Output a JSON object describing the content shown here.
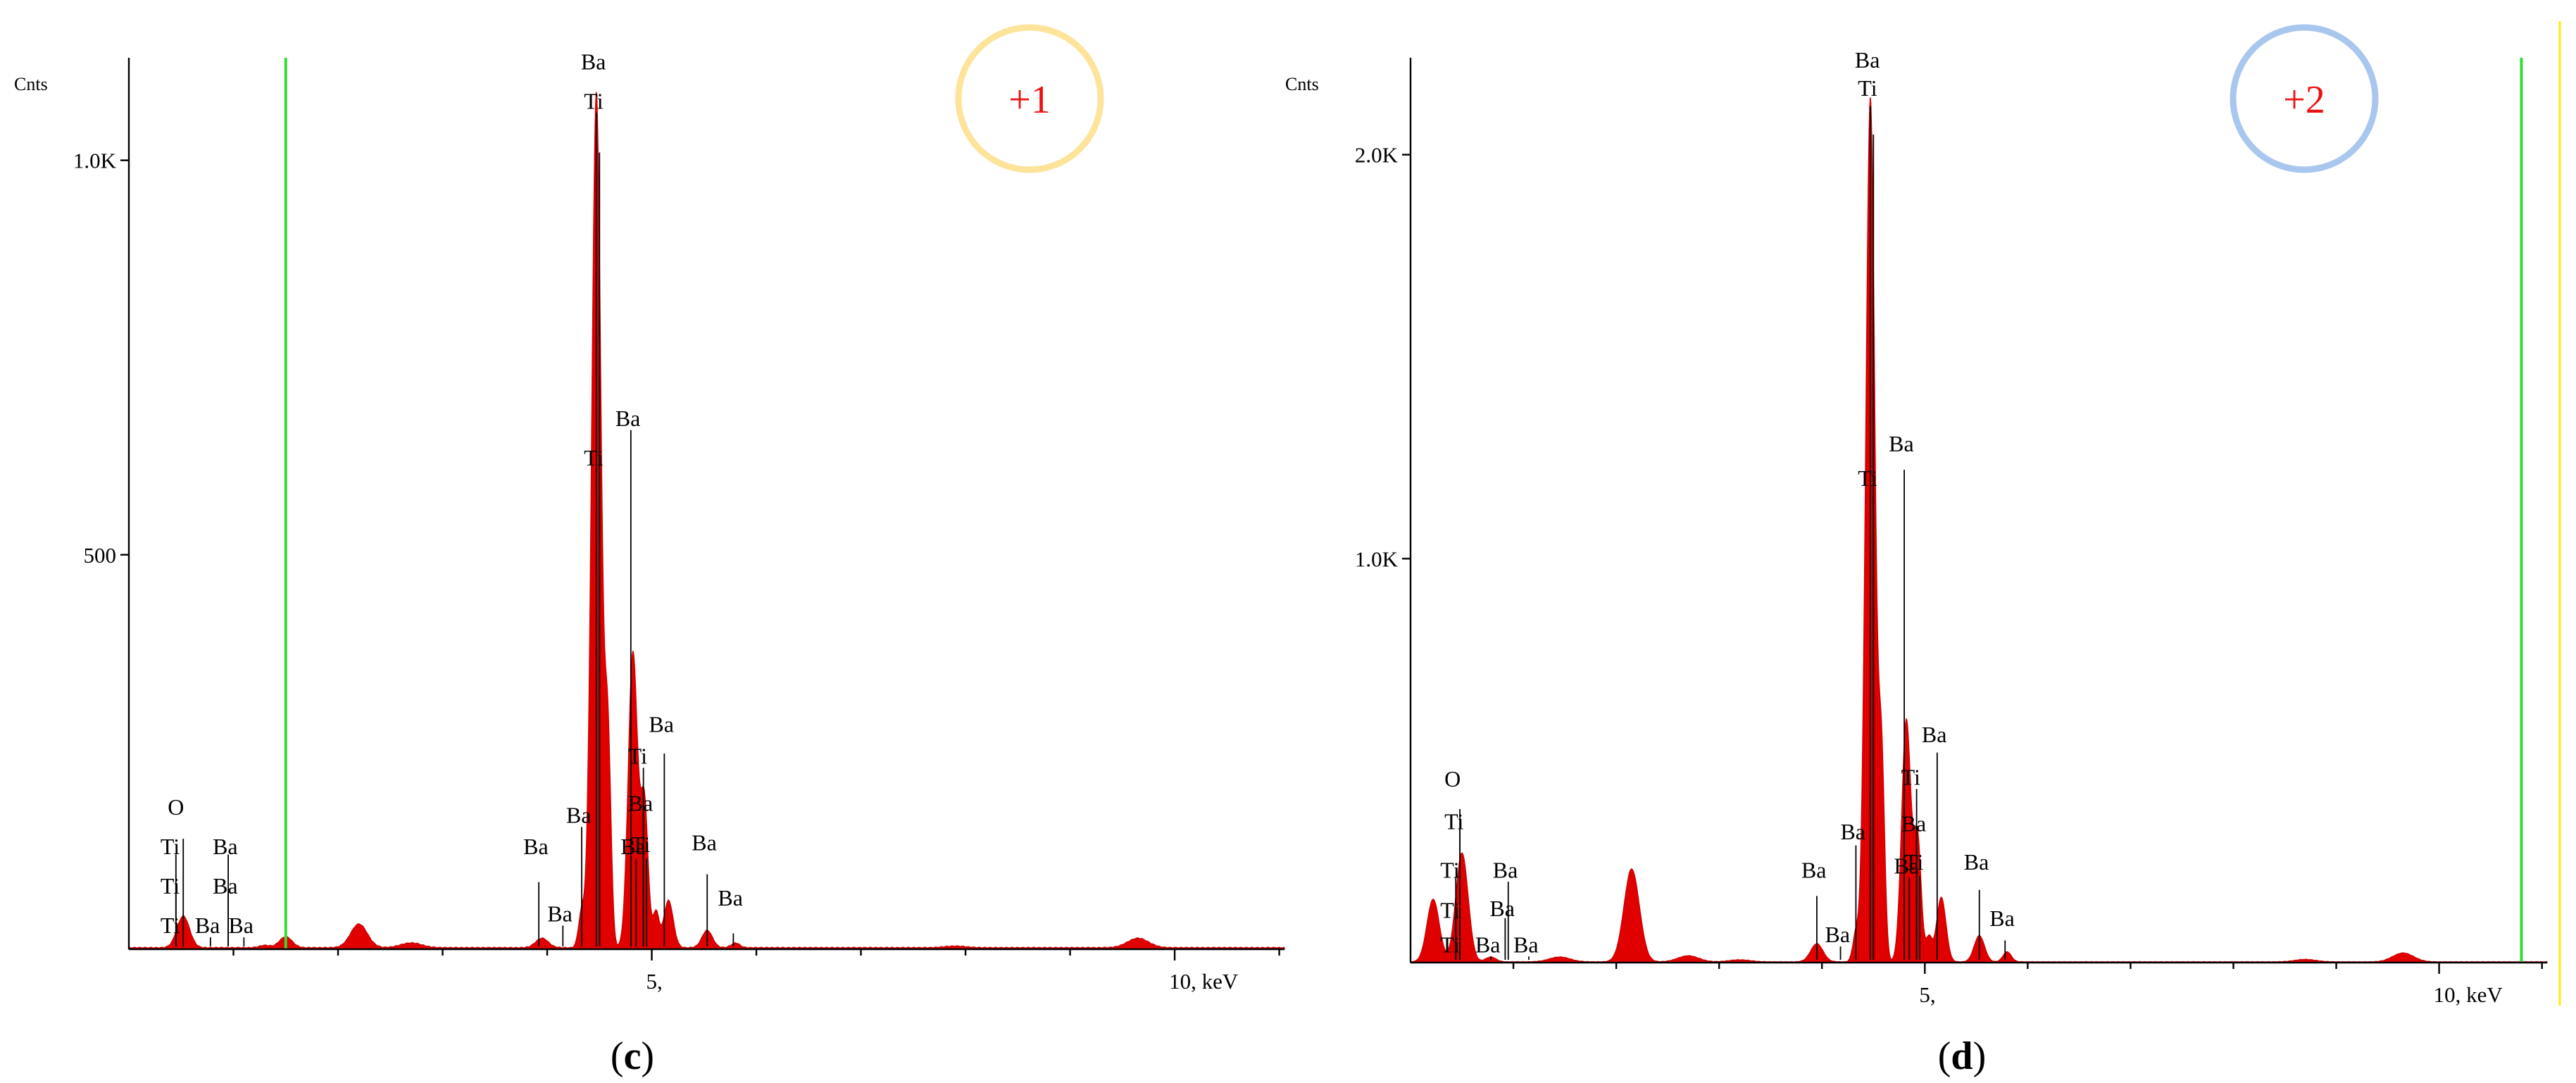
{
  "chart_data": [
    {
      "type": "area",
      "title": "",
      "xlabel": "keV",
      "ylabel": "Cnts",
      "y_unit_label": "Cnts",
      "xlim": [
        0,
        11.05
      ],
      "ylim": [
        0,
        1130
      ],
      "y_ticks": [
        {
          "value": 500,
          "label": "500"
        },
        {
          "value": 1000,
          "label": "1.0K"
        }
      ],
      "x_ticks": [
        {
          "value": 5,
          "label": "5,"
        },
        {
          "value": 10,
          "label": "10, keV"
        }
      ],
      "x_minor_ticks": [
        1,
        2,
        3,
        4,
        6,
        7,
        8,
        9,
        11
      ],
      "marker_line": {
        "x": 1.5,
        "color": "#33dd33"
      },
      "badge": {
        "text": "+1",
        "ring_color": "#fde49a",
        "text_color": "#ee1111"
      },
      "caption": {
        "open": "(",
        "letter": "c",
        "close": ")"
      },
      "grid": false,
      "legend": "none",
      "peaks": [
        {
          "x": 0.52,
          "y": 40,
          "w": 0.06
        },
        {
          "x": 1.3,
          "y": 3,
          "w": 0.05
        },
        {
          "x": 1.5,
          "y": 14,
          "w": 0.06
        },
        {
          "x": 2.2,
          "y": 30,
          "w": 0.08
        },
        {
          "x": 2.7,
          "y": 6,
          "w": 0.1
        },
        {
          "x": 3.95,
          "y": 12,
          "w": 0.06
        },
        {
          "x": 4.33,
          "y": 45,
          "w": 0.03
        },
        {
          "x": 4.47,
          "y": 1085,
          "w": 0.045
        },
        {
          "x": 4.58,
          "y": 260,
          "w": 0.03
        },
        {
          "x": 4.82,
          "y": 375,
          "w": 0.045
        },
        {
          "x": 4.93,
          "y": 180,
          "w": 0.035
        },
        {
          "x": 5.04,
          "y": 45,
          "w": 0.03
        },
        {
          "x": 5.16,
          "y": 60,
          "w": 0.045
        },
        {
          "x": 5.53,
          "y": 22,
          "w": 0.05
        },
        {
          "x": 5.8,
          "y": 6,
          "w": 0.04
        },
        {
          "x": 7.9,
          "y": 2,
          "w": 0.1
        },
        {
          "x": 9.65,
          "y": 12,
          "w": 0.1
        }
      ],
      "labels": [
        {
          "text": "Ba",
          "x": 4.47,
          "line_top": 1060,
          "text_y": 1110
        },
        {
          "text": "Ti",
          "x": 4.5,
          "line_top": 1010,
          "text_y": 1060
        },
        {
          "text": "Ba",
          "x": 4.8,
          "line_top": 658,
          "text_y": 658
        },
        {
          "text": "Ti",
          "x": 4.5,
          "line_top": 608,
          "text_y": 608
        },
        {
          "text": "Ba",
          "x": 5.12,
          "line_top": 248,
          "text_y": 270
        },
        {
          "text": "Ti",
          "x": 4.92,
          "line_top": 230,
          "text_y": 230
        },
        {
          "text": "Ba",
          "x": 4.33,
          "line_top": 155,
          "text_y": 155
        },
        {
          "text": "Ba",
          "x": 4.92,
          "line_top": 170,
          "text_y": 170
        },
        {
          "text": "Ba",
          "x": 4.85,
          "line_top": 115,
          "text_y": 115
        },
        {
          "text": "Ti",
          "x": 4.95,
          "line_top": 115,
          "text_y": 118
        },
        {
          "text": "Ba",
          "x": 3.92,
          "line_top": 85,
          "text_y": 115
        },
        {
          "text": "Ba",
          "x": 4.15,
          "line_top": 30,
          "text_y": 30
        },
        {
          "text": "Ba",
          "x": 5.53,
          "line_top": 95,
          "text_y": 120
        },
        {
          "text": "Ba",
          "x": 5.78,
          "line_top": 20,
          "text_y": 50
        },
        {
          "text": "O",
          "x": 0.52,
          "line_top": 140,
          "text_y": 165
        },
        {
          "text": "Ti",
          "x": 0.45,
          "line_top": 120,
          "text_y": 115
        },
        {
          "text": "Ti",
          "x": 0.45,
          "line_top": 70,
          "text_y": 65
        },
        {
          "text": "Ti",
          "x": 0.45,
          "line_top": 15,
          "text_y": 15
        },
        {
          "text": "Ba",
          "x": 0.95,
          "line_top": 120,
          "text_y": 115
        },
        {
          "text": "Ba",
          "x": 0.95,
          "line_top": 70,
          "text_y": 65
        },
        {
          "text": "Ba",
          "x": 0.78,
          "line_top": 15,
          "text_y": 15
        },
        {
          "text": "Ba",
          "x": 1.1,
          "line_top": 15,
          "text_y": 15
        }
      ]
    },
    {
      "type": "area",
      "title": "",
      "xlabel": "keV",
      "ylabel": "Cnts",
      "y_unit_label": "Cnts",
      "xlim": [
        0,
        11.05
      ],
      "ylim": [
        0,
        2240
      ],
      "y_ticks": [
        {
          "value": 1000,
          "label": "1.0K"
        },
        {
          "value": 2000,
          "label": "2.0K"
        }
      ],
      "x_ticks": [
        {
          "value": 5,
          "label": "5,"
        },
        {
          "value": 10,
          "label": "10, keV"
        }
      ],
      "x_minor_ticks": [
        1,
        2,
        3,
        4,
        6,
        7,
        8,
        9,
        11
      ],
      "marker_line": {
        "x": 10.8,
        "color": "#33dd33"
      },
      "edge_line": {
        "color": "#ffee00"
      },
      "badge": {
        "text": "+2",
        "ring_color": "#a9c7ee",
        "text_color": "#ee1111"
      },
      "caption": {
        "open": "(",
        "letter": "d",
        "close": ")"
      },
      "grid": false,
      "legend": "none",
      "peaks": [
        {
          "x": 0.22,
          "y": 155,
          "w": 0.06
        },
        {
          "x": 0.5,
          "y": 270,
          "w": 0.06
        },
        {
          "x": 0.78,
          "y": 12,
          "w": 0.05
        },
        {
          "x": 1.45,
          "y": 12,
          "w": 0.1
        },
        {
          "x": 2.15,
          "y": 230,
          "w": 0.075
        },
        {
          "x": 2.7,
          "y": 15,
          "w": 0.1
        },
        {
          "x": 3.2,
          "y": 5,
          "w": 0.1
        },
        {
          "x": 3.95,
          "y": 45,
          "w": 0.06
        },
        {
          "x": 4.33,
          "y": 70,
          "w": 0.03
        },
        {
          "x": 4.47,
          "y": 2140,
          "w": 0.045
        },
        {
          "x": 4.58,
          "y": 480,
          "w": 0.03
        },
        {
          "x": 4.82,
          "y": 600,
          "w": 0.045
        },
        {
          "x": 4.93,
          "y": 300,
          "w": 0.035
        },
        {
          "x": 5.04,
          "y": 60,
          "w": 0.03
        },
        {
          "x": 5.16,
          "y": 160,
          "w": 0.045
        },
        {
          "x": 5.53,
          "y": 65,
          "w": 0.05
        },
        {
          "x": 5.8,
          "y": 25,
          "w": 0.04
        },
        {
          "x": 8.7,
          "y": 6,
          "w": 0.1
        },
        {
          "x": 9.65,
          "y": 22,
          "w": 0.1
        }
      ],
      "labels": [
        {
          "text": "Ba",
          "x": 4.47,
          "line_top": 2120,
          "text_y": 2205
        },
        {
          "text": "Ti",
          "x": 4.5,
          "line_top": 2050,
          "text_y": 2135
        },
        {
          "text": "Ba",
          "x": 4.8,
          "line_top": 1220,
          "text_y": 1255
        },
        {
          "text": "Ti",
          "x": 4.5,
          "line_top": 1160,
          "text_y": 1170
        },
        {
          "text": "Ba",
          "x": 5.12,
          "line_top": 520,
          "text_y": 535
        },
        {
          "text": "Ti",
          "x": 4.92,
          "line_top": 430,
          "text_y": 430
        },
        {
          "text": "Ba",
          "x": 4.33,
          "line_top": 290,
          "text_y": 295
        },
        {
          "text": "Ba",
          "x": 4.92,
          "line_top": 315,
          "text_y": 315
        },
        {
          "text": "Ba",
          "x": 4.85,
          "line_top": 210,
          "text_y": 210
        },
        {
          "text": "Ti",
          "x": 4.95,
          "line_top": 215,
          "text_y": 220
        },
        {
          "text": "Ba",
          "x": 3.95,
          "line_top": 165,
          "text_y": 200
        },
        {
          "text": "Ba",
          "x": 4.18,
          "line_top": 40,
          "text_y": 40
        },
        {
          "text": "Ba",
          "x": 5.53,
          "line_top": 180,
          "text_y": 220
        },
        {
          "text": "Ba",
          "x": 5.78,
          "line_top": 55,
          "text_y": 80
        },
        {
          "text": "O",
          "x": 0.48,
          "line_top": 380,
          "text_y": 425
        },
        {
          "text": "Ti",
          "x": 0.48,
          "line_top": 330,
          "text_y": 320
        },
        {
          "text": "Ti",
          "x": 0.44,
          "line_top": 210,
          "text_y": 200
        },
        {
          "text": "Ti",
          "x": 0.44,
          "line_top": 110,
          "text_y": 100
        },
        {
          "text": "Ti",
          "x": 0.44,
          "line_top": 15,
          "text_y": 15
        },
        {
          "text": "Ba",
          "x": 0.95,
          "line_top": 200,
          "text_y": 200
        },
        {
          "text": "Ba",
          "x": 0.92,
          "line_top": 110,
          "text_y": 105
        },
        {
          "text": "Ba",
          "x": 0.78,
          "line_top": 15,
          "text_y": 15
        },
        {
          "text": "Ba",
          "x": 1.15,
          "line_top": 15,
          "text_y": 15
        }
      ]
    }
  ]
}
